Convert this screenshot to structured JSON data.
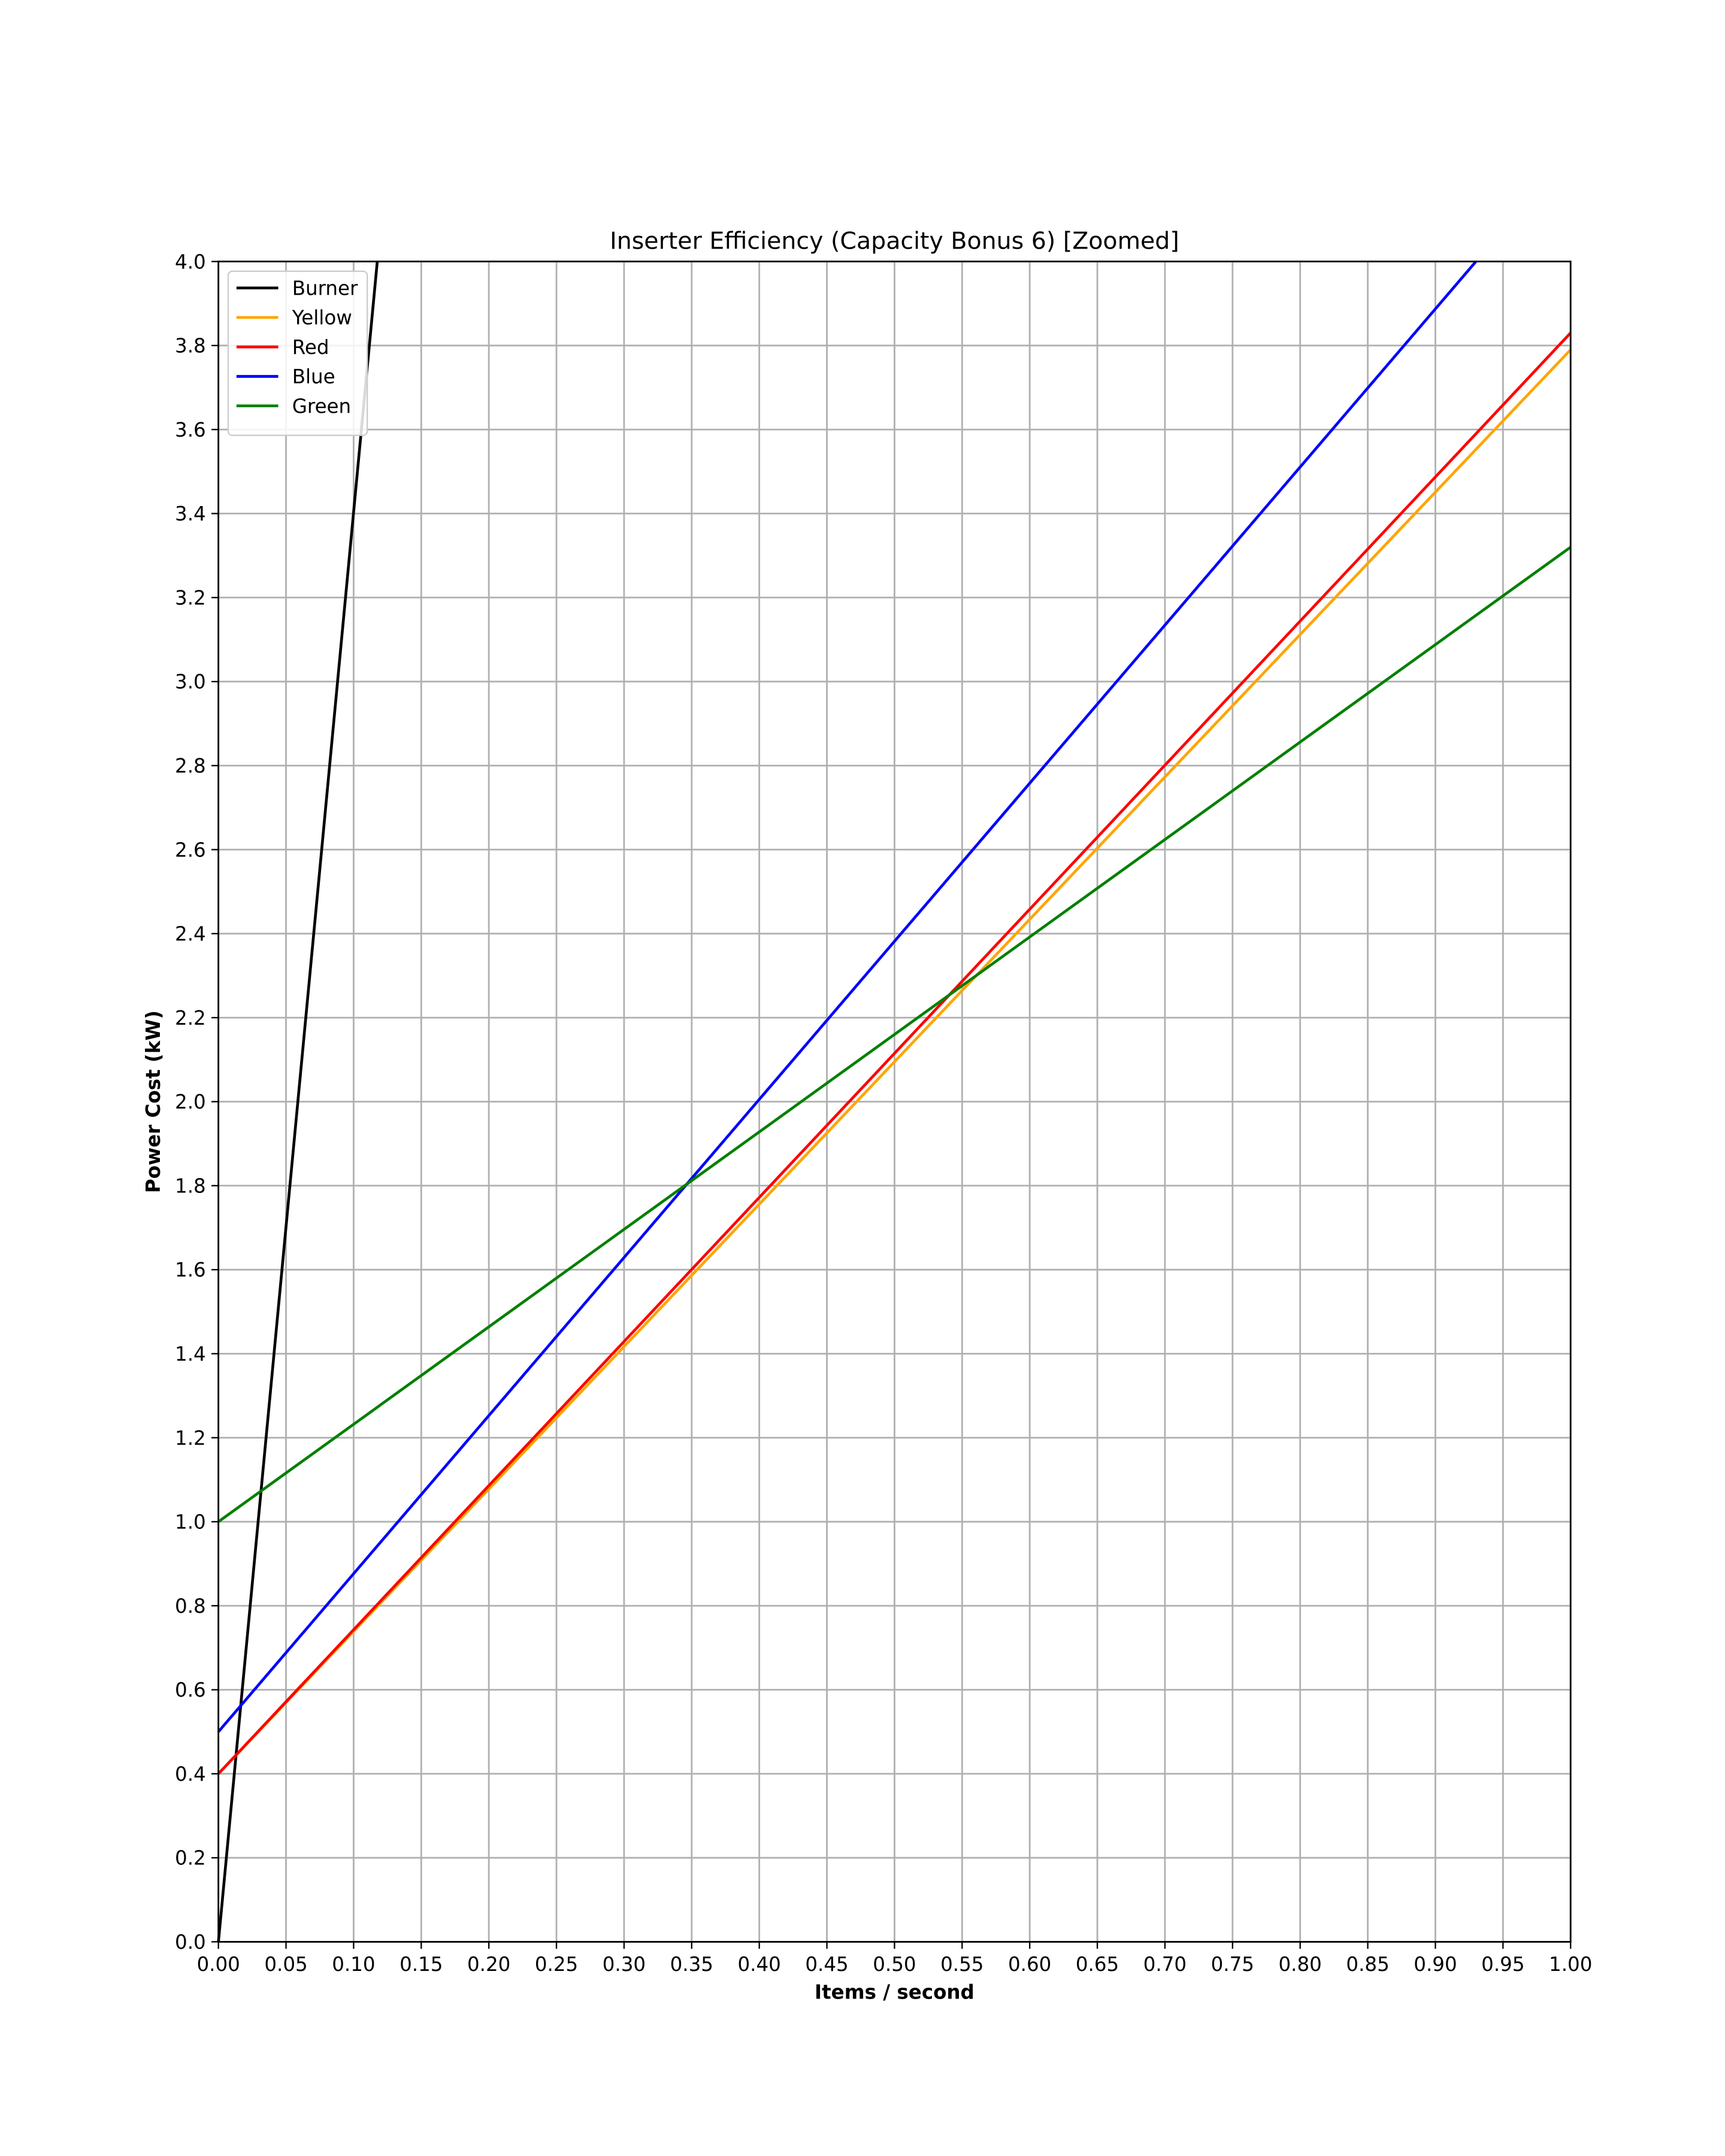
{
  "chart_data": {
    "type": "line",
    "title": "Inserter Efficiency (Capacity Bonus 6) [Zoomed]",
    "xlabel": "Items / second",
    "ylabel": "Power Cost (kW)",
    "xlim": [
      0,
      1.0
    ],
    "ylim": [
      0,
      4.0
    ],
    "grid": true,
    "legend_position": "top-left",
    "x_ticks": [
      "0.00",
      "0.05",
      "0.10",
      "0.15",
      "0.20",
      "0.25",
      "0.30",
      "0.35",
      "0.40",
      "0.45",
      "0.50",
      "0.55",
      "0.60",
      "0.65",
      "0.70",
      "0.75",
      "0.80",
      "0.85",
      "0.90",
      "0.95",
      "1.00"
    ],
    "y_ticks": [
      "0.0",
      "0.2",
      "0.4",
      "0.6",
      "0.8",
      "1.0",
      "1.2",
      "1.4",
      "1.6",
      "1.8",
      "2.0",
      "2.2",
      "2.4",
      "2.6",
      "2.8",
      "3.0",
      "3.2",
      "3.4",
      "3.6",
      "3.8",
      "4.0"
    ],
    "series": [
      {
        "name": "Burner",
        "color": "#000000",
        "x": [
          0,
          0.1175
        ],
        "y": [
          0,
          4.0
        ]
      },
      {
        "name": "Yellow",
        "color": "#ffa500",
        "x": [
          0,
          1.0
        ],
        "y": [
          0.4,
          3.79
        ]
      },
      {
        "name": "Red",
        "color": "#ff0000",
        "x": [
          0,
          1.0
        ],
        "y": [
          0.4,
          3.83
        ]
      },
      {
        "name": "Blue",
        "color": "#0000ff",
        "x": [
          0,
          0.93
        ],
        "y": [
          0.5,
          4.0
        ]
      },
      {
        "name": "Green",
        "color": "#008000",
        "x": [
          0,
          1.0
        ],
        "y": [
          1.0,
          3.32
        ]
      }
    ]
  }
}
